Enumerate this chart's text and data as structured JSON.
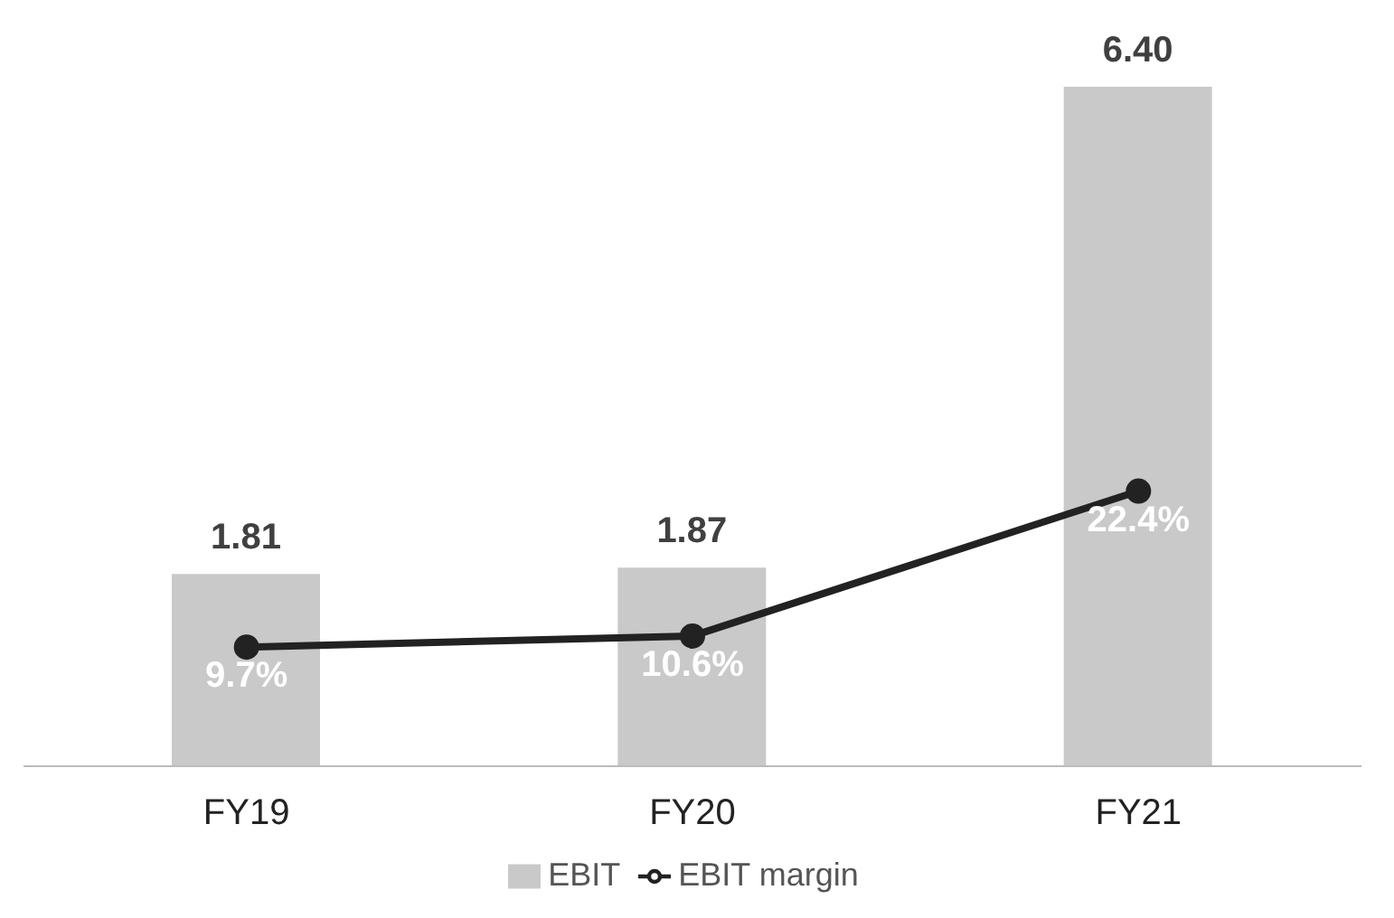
{
  "chart_data": {
    "type": "bar",
    "categories": [
      "FY19",
      "FY20",
      "FY21"
    ],
    "series": [
      {
        "name": "EBIT",
        "color": "#c9c9c9",
        "values": [
          1.81,
          1.87,
          6.4
        ],
        "value_labels": [
          "1.81",
          "1.87",
          "6.40"
        ]
      },
      {
        "name": "EBIT margin",
        "type": "line",
        "axis": "y2",
        "color": "#222222",
        "values": [
          9.7,
          10.6,
          22.4
        ],
        "value_labels": [
          "9.7%",
          "10.6%",
          "22.4%"
        ],
        "marker": "circle"
      }
    ],
    "legend": "bottom",
    "tick_labels": "x"
  }
}
